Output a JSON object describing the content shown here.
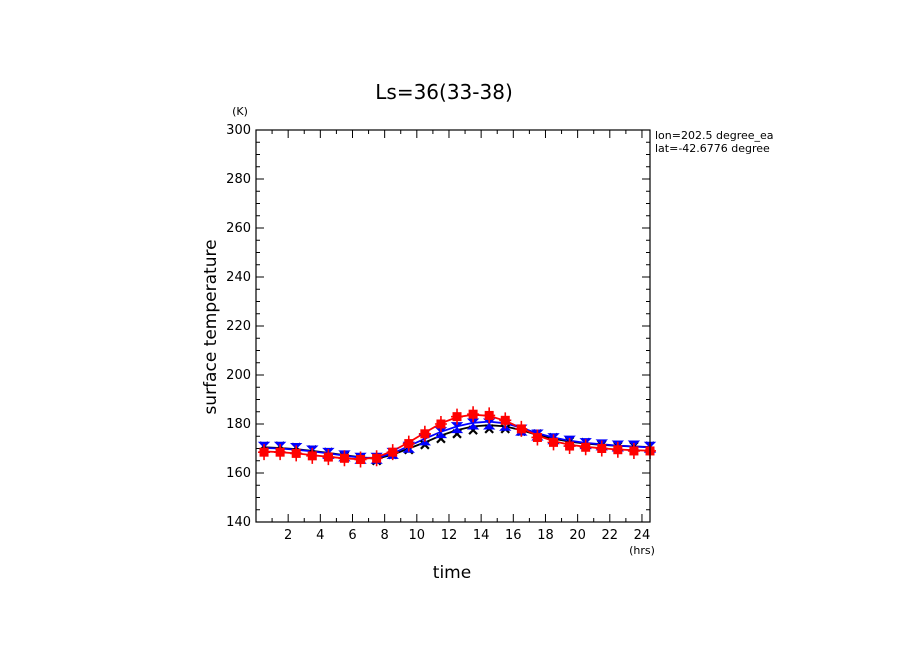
{
  "chart_data": {
    "type": "line",
    "title": "Ls=36(33-38)",
    "xlabel": "time",
    "ylabel": "surface temperature",
    "x_unit": "(hrs)",
    "y_unit": "(K)",
    "annotations": [
      "lon=202.5 degree_ea",
      "lat=-42.6776 degree"
    ],
    "xlim": [
      0,
      24.5
    ],
    "ylim": [
      140,
      300
    ],
    "x_ticks": [
      2,
      4,
      6,
      8,
      10,
      12,
      14,
      16,
      18,
      20,
      22,
      24
    ],
    "y_ticks": [
      140,
      160,
      180,
      200,
      220,
      240,
      260,
      280,
      300
    ],
    "x": [
      0.5,
      1.5,
      2.5,
      3.5,
      4.5,
      5.5,
      6.5,
      7.5,
      8.5,
      9.5,
      10.5,
      11.5,
      12.5,
      13.5,
      14.5,
      15.5,
      16.5,
      17.5,
      18.5,
      19.5,
      20.5,
      21.5,
      22.5,
      23.5,
      24.5
    ],
    "series": [
      {
        "color": "#000000",
        "marker": "x",
        "line": [
          170.5,
          170.2,
          169.7,
          169.0,
          168.2,
          167.3,
          166.4,
          165.8,
          167.5,
          170.0,
          172.5,
          175.3,
          177.5,
          179.0,
          179.5,
          179.0,
          177.5,
          175.5,
          174.0,
          172.8,
          172.0,
          171.5,
          171.1,
          170.8,
          170.6
        ],
        "markers": [
          171,
          171,
          170.5,
          169.5,
          168.5,
          167,
          166,
          165,
          167.5,
          169.5,
          171.5,
          174,
          176,
          177.5,
          178,
          178,
          177,
          176,
          174.5,
          173,
          172.5,
          171.5,
          171,
          171,
          171
        ]
      },
      {
        "color": "#0000ff",
        "marker": "bowtie",
        "line": [
          170.2,
          170.0,
          169.5,
          168.8,
          168.0,
          167.1,
          166.3,
          166.2,
          168.0,
          171.0,
          174.0,
          176.8,
          179.0,
          180.5,
          181.0,
          180.3,
          178.5,
          176.2,
          174.5,
          173.2,
          172.3,
          171.7,
          171.2,
          170.8,
          170.5
        ],
        "markers": [
          170.5,
          170.5,
          170,
          169,
          168,
          167,
          166,
          166,
          168,
          170.5,
          173.5,
          176.5,
          178.5,
          180,
          180,
          179.5,
          177.5,
          175.5,
          174,
          173,
          172,
          171.5,
          171,
          171,
          170.5
        ]
      },
      {
        "color": "#ff0000",
        "marker": "square-plus",
        "line": [
          168.8,
          168.5,
          168.0,
          167.3,
          166.6,
          166.0,
          165.6,
          166.4,
          169.0,
          172.5,
          176.5,
          180.3,
          182.8,
          183.8,
          183.3,
          181.3,
          178.3,
          175.3,
          173.0,
          171.5,
          170.7,
          170.1,
          169.6,
          169.3,
          169.1
        ],
        "markers": [
          168.5,
          168.5,
          168,
          167,
          166.5,
          166,
          165.5,
          166,
          168.5,
          172,
          176,
          180,
          183,
          184,
          183.5,
          181.5,
          178,
          174.5,
          172.5,
          171,
          170.5,
          170,
          169.5,
          169,
          169
        ]
      }
    ]
  }
}
